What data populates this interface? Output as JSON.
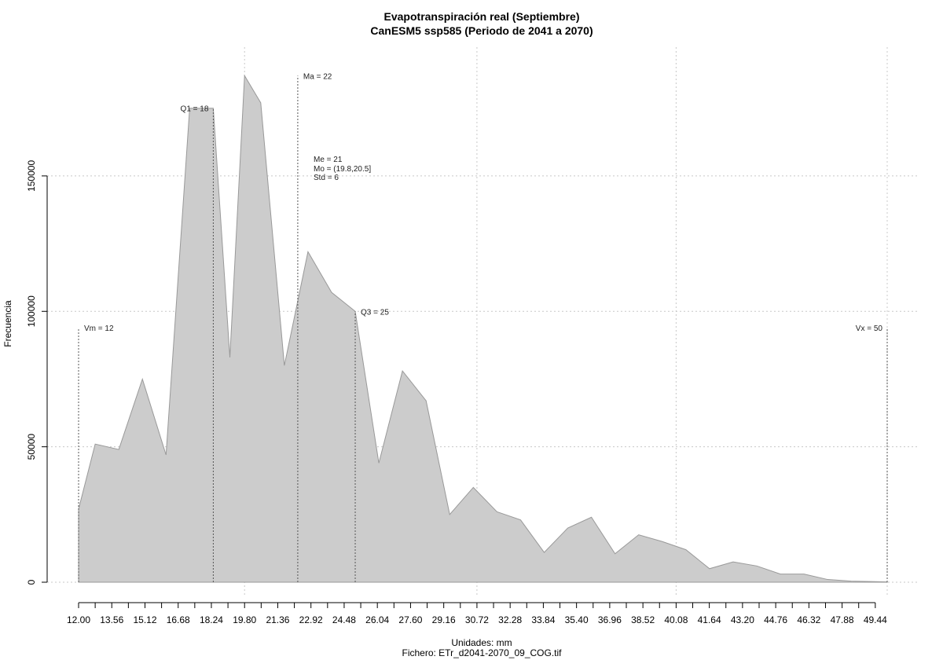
{
  "chart_data": {
    "type": "area",
    "title": "Evapotranspiración real (Septiembre)",
    "subtitle": "CanESM5 ssp585 (Periodo de 2041 a 2070)",
    "xlabel": "Unidades: mm",
    "file_label": "Fichero: ETr_d2041-2070_09_COG.tif",
    "ylabel": "Frecuencia",
    "xlim": [
      12.0,
      50.0
    ],
    "ylim": [
      0,
      190000
    ],
    "grid": true,
    "fill_color": "#cccccc",
    "line_color": "#999999",
    "x_ticks": [
      "12.00",
      "13.56",
      "15.12",
      "16.68",
      "18.24",
      "19.80",
      "21.36",
      "22.92",
      "24.48",
      "26.04",
      "27.60",
      "29.16",
      "30.72",
      "32.28",
      "33.84",
      "35.40",
      "36.96",
      "38.52",
      "40.08",
      "41.64",
      "43.20",
      "44.76",
      "46.32",
      "47.88",
      "49.44"
    ],
    "y_ticks": [
      0,
      50000,
      100000,
      150000
    ],
    "x_grid": [
      19.8,
      30.72,
      40.08,
      50.0
    ],
    "x": [
      12.0,
      12.78,
      13.89,
      15.0,
      16.11,
      17.22,
      18.33,
      19.11,
      19.8,
      20.56,
      21.67,
      22.78,
      23.89,
      25.0,
      26.11,
      27.22,
      28.33,
      29.44,
      30.55,
      31.66,
      32.77,
      33.88,
      34.99,
      36.1,
      37.21,
      38.32,
      39.43,
      40.54,
      41.65,
      42.76,
      43.87,
      44.98,
      46.09,
      47.2,
      48.31,
      49.42,
      50.0
    ],
    "y": [
      27000,
      51000,
      49000,
      75000,
      47000,
      175000,
      175000,
      83000,
      187000,
      177000,
      80000,
      122000,
      107000,
      100000,
      44000,
      78000,
      67000,
      25000,
      35000,
      26000,
      23000,
      11000,
      20000,
      24000,
      10500,
      17500,
      15000,
      12000,
      5000,
      7500,
      6000,
      3000,
      3000,
      1000,
      400,
      200,
      100
    ],
    "markers": [
      {
        "x": 12.0,
        "label": "Vm = 12",
        "height": 94000,
        "side": "right"
      },
      {
        "x": 18.33,
        "label": "Q1 = 18",
        "height": 175000,
        "side": "left"
      },
      {
        "x": 22.3,
        "label": "Ma = 22",
        "height": 187000,
        "side": "right"
      },
      {
        "x": 25.0,
        "label": "Q3 = 25",
        "height": 100000,
        "side": "right"
      },
      {
        "x": 50.0,
        "label": "Vx = 50",
        "height": 94000,
        "side": "left"
      }
    ],
    "stats": [
      "Me = 21",
      "Mo = (19.8,20.5]",
      "Std = 6"
    ]
  }
}
